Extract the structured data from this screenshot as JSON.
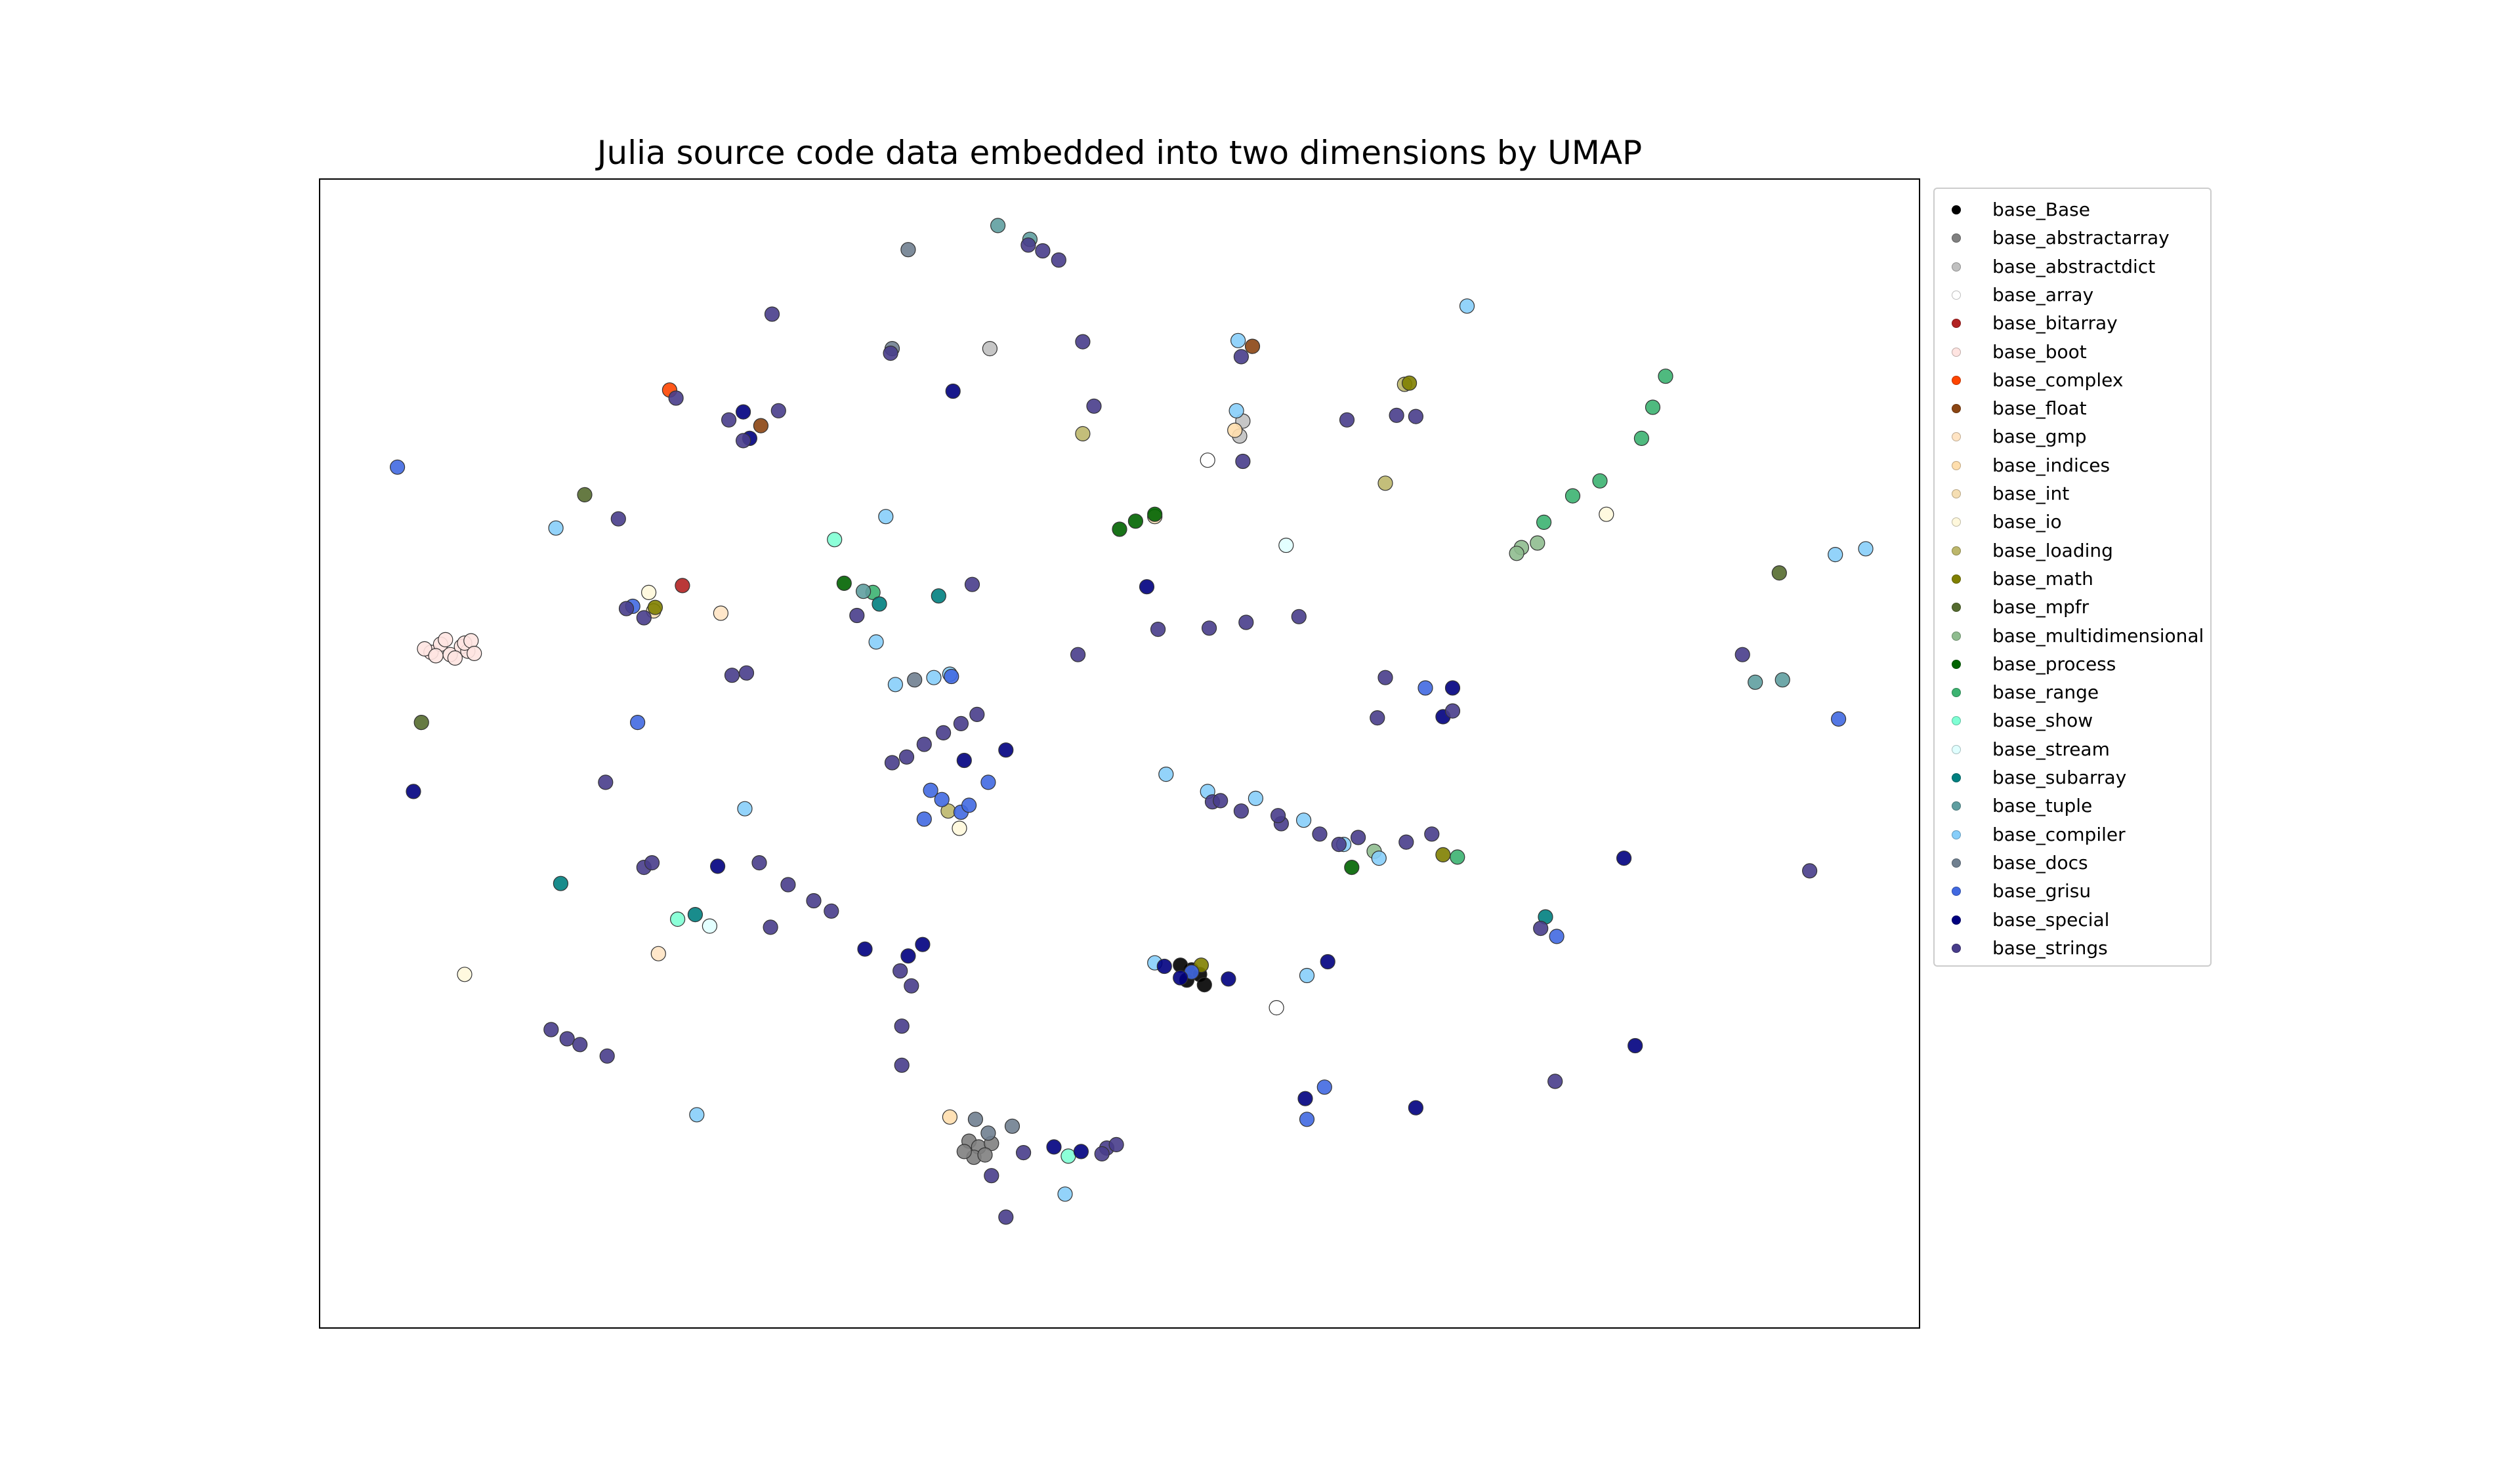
{
  "chart_data": {
    "type": "scatter",
    "title": "Julia source code data embedded into two dimensions by UMAP",
    "xlabel": "",
    "ylabel": "",
    "axes_visible": false,
    "grid": false,
    "legend_position": "outside-right",
    "xlim": [
      0,
      100
    ],
    "ylim": [
      0,
      100
    ],
    "series": [
      {
        "name": "base_Base",
        "color": "#000000",
        "points": [
          [
            54.5,
            31.2
          ],
          [
            55.0,
            30.8
          ],
          [
            54.2,
            30.3
          ],
          [
            55.3,
            29.9
          ],
          [
            53.8,
            31.6
          ]
        ]
      },
      {
        "name": "base_abstractarray",
        "color": "#808080",
        "points": [
          [
            40.6,
            16.3
          ],
          [
            41.2,
            15.8
          ],
          [
            40.9,
            14.9
          ],
          [
            42.0,
            16.1
          ],
          [
            40.3,
            15.4
          ],
          [
            41.6,
            15.1
          ]
        ]
      },
      {
        "name": "base_abstractdict",
        "color": "#c0c0c0",
        "points": [
          [
            57.5,
            77.6
          ],
          [
            57.7,
            78.9
          ],
          [
            41.9,
            85.2
          ]
        ]
      },
      {
        "name": "base_array",
        "color": "#ffffff",
        "points": [
          [
            59.8,
            27.9
          ],
          [
            55.5,
            75.5
          ]
        ]
      },
      {
        "name": "base_bitarray",
        "color": "#b22222",
        "points": [
          [
            22.7,
            64.6
          ]
        ]
      },
      {
        "name": "base_boot",
        "color": "#ffe4e1",
        "points": [
          [
            7.0,
            58.8
          ],
          [
            7.6,
            59.5
          ],
          [
            8.2,
            58.6
          ],
          [
            8.9,
            59.3
          ],
          [
            6.6,
            59.1
          ],
          [
            7.9,
            59.9
          ],
          [
            9.3,
            58.9
          ],
          [
            8.5,
            58.3
          ],
          [
            9.1,
            59.6
          ],
          [
            7.3,
            58.5
          ],
          [
            9.5,
            59.8
          ],
          [
            9.7,
            58.7
          ]
        ]
      },
      {
        "name": "base_complex",
        "color": "#ff4500",
        "points": [
          [
            21.9,
            81.6
          ]
        ]
      },
      {
        "name": "base_float",
        "color": "#8b4513",
        "points": [
          [
            27.6,
            78.5
          ],
          [
            58.3,
            85.4
          ]
        ]
      },
      {
        "name": "base_gmp",
        "color": "#ffe4c4",
        "points": [
          [
            25.1,
            62.2
          ],
          [
            21.2,
            32.6
          ]
        ]
      },
      {
        "name": "base_indices",
        "color": "#ffdead",
        "points": [
          [
            39.4,
            18.4
          ],
          [
            57.2,
            78.1
          ]
        ]
      },
      {
        "name": "base_int",
        "color": "#f5deb3",
        "points": [
          [
            20.9,
            62.4
          ],
          [
            52.2,
            70.6
          ]
        ]
      },
      {
        "name": "base_io",
        "color": "#fff8dc",
        "points": [
          [
            20.6,
            64.0
          ],
          [
            9.1,
            30.8
          ],
          [
            80.4,
            70.8
          ],
          [
            40.0,
            43.5
          ]
        ]
      },
      {
        "name": "base_loading",
        "color": "#bdb76b",
        "points": [
          [
            39.3,
            45.0
          ],
          [
            47.7,
            77.8
          ],
          [
            67.8,
            82.1
          ],
          [
            66.6,
            73.5
          ]
        ]
      },
      {
        "name": "base_math",
        "color": "#808000",
        "points": [
          [
            21.0,
            62.7
          ],
          [
            55.1,
            31.6
          ],
          [
            68.1,
            82.2
          ],
          [
            70.2,
            41.2
          ]
        ]
      },
      {
        "name": "base_mpfr",
        "color": "#556b2f",
        "points": [
          [
            6.4,
            52.7
          ],
          [
            16.6,
            72.5
          ],
          [
            91.2,
            65.7
          ]
        ]
      },
      {
        "name": "base_multidimensional",
        "color": "#8fbc8f",
        "points": [
          [
            75.1,
            67.9
          ],
          [
            76.1,
            68.3
          ],
          [
            74.8,
            67.4
          ],
          [
            65.9,
            41.5
          ]
        ]
      },
      {
        "name": "base_process",
        "color": "#006400",
        "points": [
          [
            50.0,
            69.5
          ],
          [
            51.0,
            70.2
          ],
          [
            52.2,
            70.8
          ],
          [
            32.8,
            64.8
          ],
          [
            64.5,
            40.1
          ]
        ]
      },
      {
        "name": "base_range",
        "color": "#3cb371",
        "points": [
          [
            82.6,
            77.4
          ],
          [
            83.3,
            80.1
          ],
          [
            84.1,
            82.8
          ],
          [
            80.0,
            73.7
          ],
          [
            78.3,
            72.4
          ],
          [
            76.5,
            70.1
          ],
          [
            71.1,
            41.0
          ],
          [
            34.6,
            64.0
          ]
        ]
      },
      {
        "name": "base_show",
        "color": "#7fffd4",
        "points": [
          [
            32.2,
            68.6
          ],
          [
            22.4,
            35.6
          ],
          [
            46.8,
            15.0
          ]
        ]
      },
      {
        "name": "base_stream",
        "color": "#e0ffff",
        "points": [
          [
            60.4,
            68.1
          ],
          [
            24.4,
            35.0
          ]
        ]
      },
      {
        "name": "base_subarray",
        "color": "#008080",
        "points": [
          [
            23.5,
            36.0
          ],
          [
            15.1,
            38.7
          ],
          [
            35.0,
            63.0
          ],
          [
            76.6,
            35.8
          ],
          [
            38.7,
            63.7
          ]
        ]
      },
      {
        "name": "base_tuple",
        "color": "#5f9ea0",
        "points": [
          [
            44.4,
            94.7
          ],
          [
            42.4,
            95.9
          ],
          [
            89.7,
            56.2
          ],
          [
            91.4,
            56.4
          ],
          [
            34.0,
            64.1
          ]
        ]
      },
      {
        "name": "base_compiler",
        "color": "#87cefa",
        "points": [
          [
            71.7,
            88.9
          ],
          [
            57.4,
            85.9
          ],
          [
            57.3,
            79.8
          ],
          [
            52.9,
            48.2
          ],
          [
            55.5,
            46.7
          ],
          [
            58.5,
            46.1
          ],
          [
            61.5,
            44.2
          ],
          [
            64.0,
            42.1
          ],
          [
            66.2,
            40.9
          ],
          [
            36.0,
            56.0
          ],
          [
            38.4,
            56.6
          ],
          [
            39.4,
            56.9
          ],
          [
            26.6,
            45.2
          ],
          [
            23.6,
            18.6
          ],
          [
            94.7,
            67.3
          ],
          [
            96.6,
            67.8
          ],
          [
            52.2,
            31.8
          ],
          [
            61.7,
            30.7
          ],
          [
            14.8,
            69.6
          ],
          [
            46.6,
            11.7
          ],
          [
            35.4,
            70.6
          ],
          [
            34.8,
            59.7
          ]
        ]
      },
      {
        "name": "base_docs",
        "color": "#708090",
        "points": [
          [
            35.8,
            85.2
          ],
          [
            41.0,
            18.2
          ],
          [
            41.8,
            17.0
          ],
          [
            43.3,
            17.6
          ],
          [
            36.8,
            93.8
          ],
          [
            37.2,
            56.4
          ]
        ]
      },
      {
        "name": "base_grisu",
        "color": "#4169e1",
        "points": [
          [
            4.9,
            74.9
          ],
          [
            19.6,
            62.8
          ],
          [
            19.9,
            52.7
          ],
          [
            94.9,
            53.0
          ],
          [
            37.8,
            44.3
          ],
          [
            38.9,
            46.0
          ],
          [
            40.1,
            44.9
          ],
          [
            54.5,
            31.0
          ],
          [
            61.7,
            18.2
          ],
          [
            77.3,
            34.1
          ],
          [
            62.8,
            21.0
          ],
          [
            69.1,
            55.7
          ],
          [
            39.5,
            56.7
          ],
          [
            40.6,
            45.5
          ],
          [
            38.2,
            46.8
          ],
          [
            41.8,
            47.5
          ]
        ]
      },
      {
        "name": "base_special",
        "color": "#000080",
        "points": [
          [
            5.9,
            46.7
          ],
          [
            26.5,
            79.7
          ],
          [
            51.7,
            64.5
          ],
          [
            70.8,
            55.7
          ],
          [
            70.2,
            53.2
          ],
          [
            81.5,
            40.9
          ],
          [
            82.2,
            24.6
          ],
          [
            34.1,
            33.0
          ],
          [
            36.8,
            32.4
          ],
          [
            37.7,
            33.4
          ],
          [
            52.8,
            31.5
          ],
          [
            53.8,
            30.5
          ],
          [
            61.6,
            20.0
          ],
          [
            68.5,
            19.2
          ],
          [
            45.9,
            15.8
          ],
          [
            47.6,
            15.4
          ],
          [
            24.9,
            40.2
          ],
          [
            26.9,
            77.4
          ],
          [
            40.3,
            49.4
          ],
          [
            42.9,
            50.3
          ],
          [
            39.6,
            81.5
          ],
          [
            56.8,
            30.4
          ],
          [
            63.0,
            31.9
          ]
        ]
      },
      {
        "name": "base_strings",
        "color": "#483d8b",
        "points": [
          [
            44.3,
            94.2
          ],
          [
            45.2,
            93.7
          ],
          [
            46.2,
            92.9
          ],
          [
            28.3,
            88.2
          ],
          [
            35.7,
            84.8
          ],
          [
            47.7,
            85.8
          ],
          [
            22.3,
            80.9
          ],
          [
            25.6,
            79.0
          ],
          [
            28.7,
            79.8
          ],
          [
            48.4,
            80.2
          ],
          [
            57.6,
            84.5
          ],
          [
            57.7,
            75.4
          ],
          [
            64.2,
            79.0
          ],
          [
            67.3,
            79.4
          ],
          [
            68.5,
            79.3
          ],
          [
            18.7,
            70.4
          ],
          [
            26.5,
            77.2
          ],
          [
            40.8,
            64.7
          ],
          [
            33.6,
            62.0
          ],
          [
            19.2,
            62.6
          ],
          [
            20.3,
            61.8
          ],
          [
            52.4,
            60.8
          ],
          [
            55.6,
            60.9
          ],
          [
            57.9,
            61.4
          ],
          [
            61.2,
            61.9
          ],
          [
            47.4,
            58.6
          ],
          [
            66.6,
            56.6
          ],
          [
            66.1,
            53.1
          ],
          [
            70.8,
            53.7
          ],
          [
            88.9,
            58.6
          ],
          [
            25.8,
            56.8
          ],
          [
            26.7,
            57.0
          ],
          [
            35.8,
            49.2
          ],
          [
            36.7,
            49.7
          ],
          [
            37.8,
            50.8
          ],
          [
            39.0,
            51.8
          ],
          [
            40.1,
            52.6
          ],
          [
            41.1,
            53.4
          ],
          [
            17.9,
            47.5
          ],
          [
            55.8,
            45.8
          ],
          [
            57.6,
            45.0
          ],
          [
            60.1,
            43.9
          ],
          [
            62.5,
            43.0
          ],
          [
            64.9,
            42.7
          ],
          [
            67.9,
            42.3
          ],
          [
            69.5,
            43.0
          ],
          [
            56.3,
            45.9
          ],
          [
            59.9,
            44.6
          ],
          [
            63.7,
            42.1
          ],
          [
            20.3,
            40.1
          ],
          [
            20.8,
            40.5
          ],
          [
            27.5,
            40.5
          ],
          [
            29.3,
            38.6
          ],
          [
            30.9,
            37.2
          ],
          [
            32.0,
            36.3
          ],
          [
            36.3,
            31.1
          ],
          [
            37.0,
            29.8
          ],
          [
            36.4,
            26.3
          ],
          [
            28.2,
            34.9
          ],
          [
            14.5,
            26.0
          ],
          [
            15.5,
            25.2
          ],
          [
            16.3,
            24.7
          ],
          [
            36.4,
            22.9
          ],
          [
            49.2,
            15.7
          ],
          [
            49.8,
            16.0
          ],
          [
            48.9,
            15.2
          ],
          [
            44.0,
            15.3
          ],
          [
            42.0,
            13.3
          ],
          [
            76.3,
            34.8
          ],
          [
            93.1,
            39.8
          ],
          [
            77.2,
            21.5
          ],
          [
            42.9,
            9.7
          ],
          [
            18.0,
            23.7
          ]
        ]
      }
    ]
  }
}
